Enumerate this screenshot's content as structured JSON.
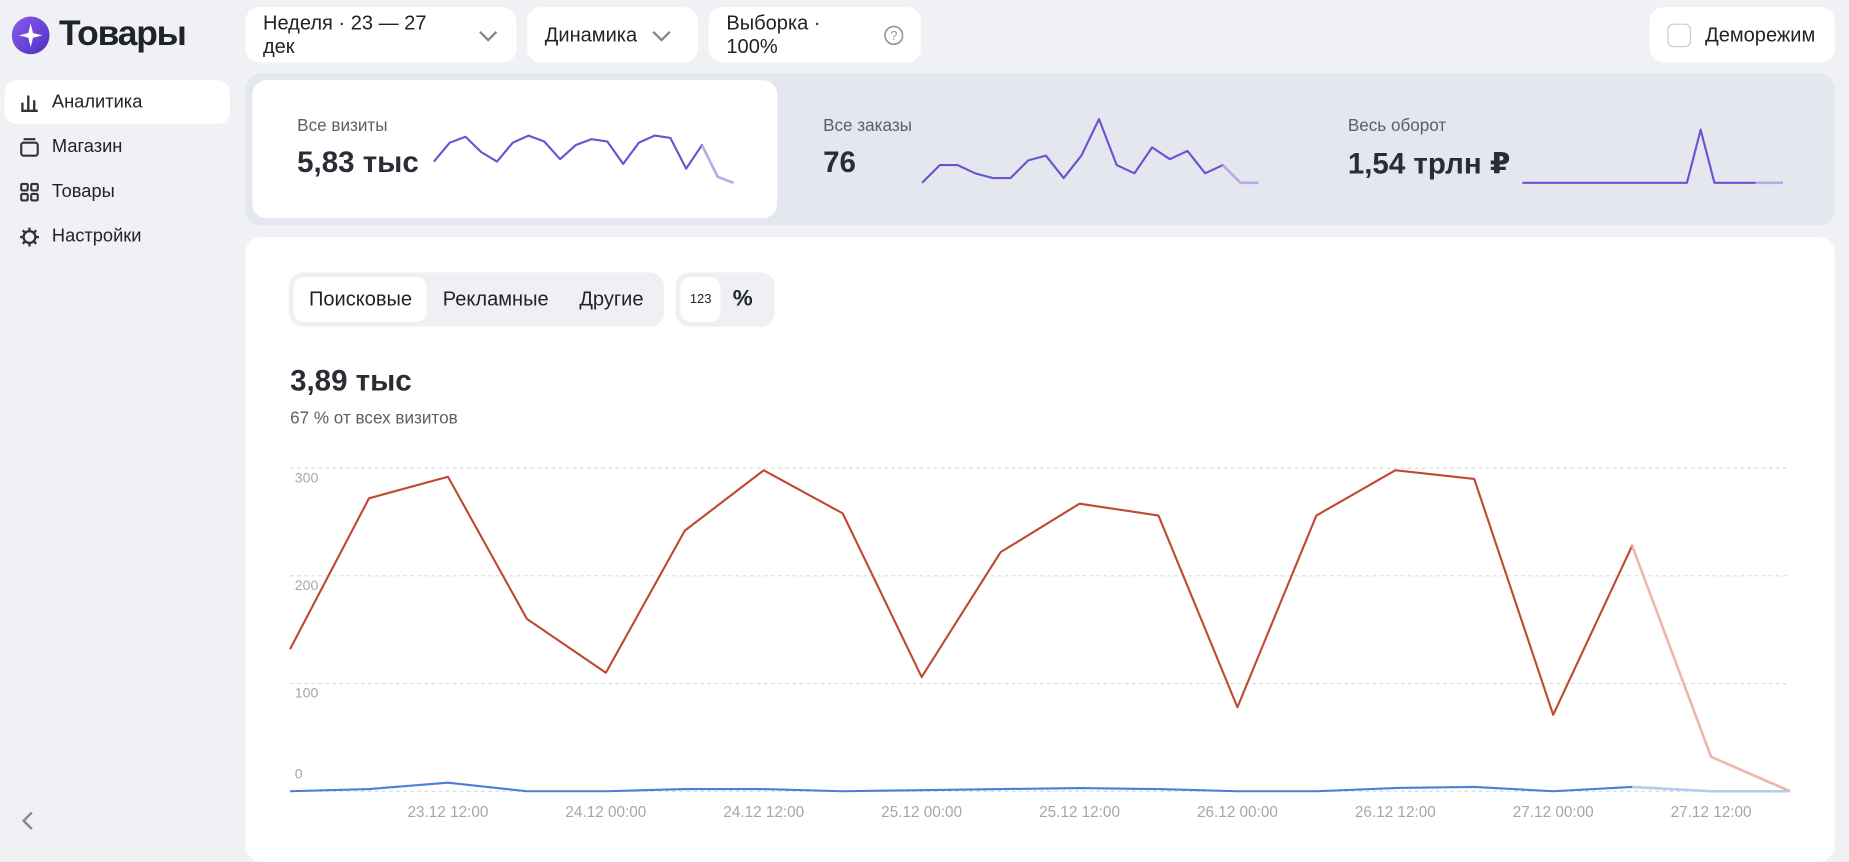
{
  "header": {
    "logo": "Товары",
    "filters": [
      "Неделя · 23 — 27 дек",
      "Динамика",
      "Выборка · 100%"
    ],
    "demo": "Деморежим"
  },
  "sidebar": [
    "Аналитика",
    "Магазин",
    "Товары",
    "Настройки"
  ],
  "cards": [
    {
      "label": "Все визиты",
      "value": "5,83 тыс"
    },
    {
      "label": "Все заказы",
      "value": "76"
    },
    {
      "label": "Весь оборот",
      "value": "1,54 трлн ₽"
    }
  ],
  "tabs": [
    "Поисковые",
    "Рекламные",
    "Другие"
  ],
  "units": [
    "123",
    "%"
  ],
  "summary": {
    "value": "3,89 тыс",
    "note": "67 % от всех визитов"
  },
  "chart_data": [
    {
      "type": "sparkline",
      "color": "#6f4fd2",
      "partial_color": "#b9aae8",
      "values": [
        23,
        39,
        44,
        31,
        23,
        39,
        45,
        40,
        25,
        37,
        42,
        40,
        21,
        39,
        45,
        43,
        17,
        37,
        10,
        5
      ]
    },
    {
      "type": "sparkline",
      "color": "#6f4fd2",
      "partial_color": "#b9aae8",
      "values": [
        5,
        20,
        20,
        13,
        9,
        9,
        24,
        28,
        9,
        28,
        59,
        20,
        13,
        35,
        25,
        32,
        13,
        20,
        5,
        5
      ]
    },
    {
      "type": "sparkline",
      "color": "#6f4fd2",
      "partial_color": "#b9aae8",
      "values": [
        0,
        0,
        0,
        0,
        0,
        0,
        0,
        0,
        0,
        0,
        0,
        0,
        0,
        45,
        0,
        0,
        0,
        0,
        0,
        0
      ]
    },
    {
      "type": "line",
      "categories": [
        null,
        null,
        "23.12 12:00",
        null,
        "24.12 00:00",
        null,
        "24.12 12:00",
        null,
        "25.12 00:00",
        null,
        "25.12 12:00",
        null,
        "26.12 00:00",
        null,
        "26.12 12:00",
        null,
        "27.12 00:00",
        null,
        "27.12 12:00",
        null
      ],
      "ylim": [
        0,
        300
      ],
      "yticks": [
        0,
        100,
        200,
        300
      ],
      "grid": true,
      "series": [
        {
          "color": "#bf4a30",
          "partial_color": "#ebb8aa",
          "values": [
            132,
            272,
            292,
            160,
            110,
            242,
            298,
            258,
            106,
            222,
            267,
            256,
            78,
            256,
            298,
            290,
            71,
            228,
            32,
            0
          ]
        },
        {
          "color": "#4b7fd6",
          "partial_color": "#b5cbef",
          "values": [
            0,
            2,
            8,
            0,
            0,
            2,
            2,
            0,
            1,
            2,
            3,
            2,
            0,
            0,
            3,
            4,
            0,
            4,
            0,
            0
          ]
        }
      ]
    }
  ]
}
